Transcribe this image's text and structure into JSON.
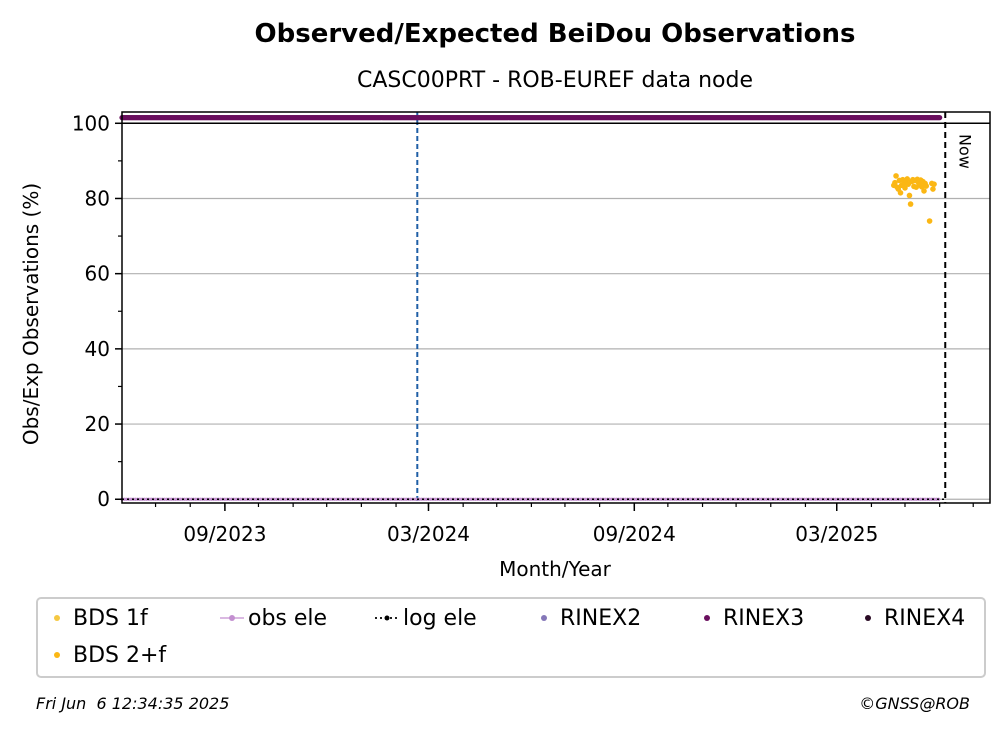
{
  "chart_data": {
    "type": "scatter",
    "title": "Observed/Expected BeiDou Observations",
    "subtitle": "CASC00PRT - ROB-EUREF data node",
    "xlabel": "Month/Year",
    "ylabel": "Obs/Exp Observations (%)",
    "x_range": [
      "2023-06-01",
      "2025-07-16"
    ],
    "ylim": [
      -1,
      103
    ],
    "xticks": [
      {
        "date": "2023-09-01",
        "label": "09/2023"
      },
      {
        "date": "2024-03-01",
        "label": "03/2024"
      },
      {
        "date": "2024-09-01",
        "label": "09/2024"
      },
      {
        "date": "2025-03-01",
        "label": "03/2025"
      }
    ],
    "yticks": [
      0,
      20,
      40,
      60,
      80,
      100
    ],
    "grid": "horizontal",
    "annotations": {
      "vertical_marker": {
        "date": "2024-02-20",
        "color": "#1f5fa6"
      },
      "now": {
        "date": "2025-06-06",
        "label": "Now"
      },
      "y100_line": 100
    },
    "series": [
      {
        "name": "BDS 1f",
        "color": "#f5c842",
        "points": []
      },
      {
        "name": "obs ele",
        "color": "#c38fd0",
        "y_constant": 0,
        "x_range": [
          "2023-06-01",
          "2025-06-01"
        ]
      },
      {
        "name": "log ele",
        "color": "#000000",
        "y_constant": 0,
        "x_range": [
          "2023-06-01",
          "2025-06-06"
        ]
      },
      {
        "name": "RINEX2",
        "color": "#8577b8",
        "points": []
      },
      {
        "name": "RINEX3",
        "color": "#6a0f5e",
        "y_constant": 101.5,
        "x_range": [
          "2023-06-01",
          "2025-06-01"
        ]
      },
      {
        "name": "RINEX4",
        "color": "#2a0a24",
        "points": []
      },
      {
        "name": "BDS 2+f",
        "color": "#fbb714",
        "points": [
          [
            "2025-04-21",
            83.5
          ],
          [
            "2025-04-22",
            84.2
          ],
          [
            "2025-04-23",
            86.0
          ],
          [
            "2025-04-24",
            83.0
          ],
          [
            "2025-04-25",
            82.5
          ],
          [
            "2025-04-26",
            84.8
          ],
          [
            "2025-04-27",
            81.5
          ],
          [
            "2025-04-28",
            83.5
          ],
          [
            "2025-04-29",
            85.0
          ],
          [
            "2025-04-30",
            84.0
          ],
          [
            "2025-05-01",
            82.8
          ],
          [
            "2025-05-02",
            84.6
          ],
          [
            "2025-05-03",
            85.2
          ],
          [
            "2025-05-04",
            83.8
          ],
          [
            "2025-05-05",
            80.8
          ],
          [
            "2025-05-06",
            78.5
          ],
          [
            "2025-05-07",
            84.5
          ],
          [
            "2025-05-08",
            85.0
          ],
          [
            "2025-05-09",
            83.2
          ],
          [
            "2025-05-10",
            84.8
          ],
          [
            "2025-05-11",
            83.0
          ],
          [
            "2025-05-12",
            85.1
          ],
          [
            "2025-05-13",
            84.3
          ],
          [
            "2025-05-14",
            83.6
          ],
          [
            "2025-05-15",
            84.9
          ],
          [
            "2025-05-16",
            83.1
          ],
          [
            "2025-05-17",
            84.5
          ],
          [
            "2025-05-18",
            82.0
          ],
          [
            "2025-05-19",
            84.0
          ],
          [
            "2025-05-20",
            83.3
          ],
          [
            "2025-05-23",
            74.0
          ],
          [
            "2025-05-25",
            84.0
          ],
          [
            "2025-05-26",
            82.5
          ],
          [
            "2025-05-27",
            83.8
          ]
        ]
      }
    ],
    "legend": {
      "placement": "bottom",
      "entries": [
        {
          "name": "BDS 1f",
          "marker": "dot",
          "color": "#f5c842"
        },
        {
          "name": "obs ele",
          "marker": "line-dot",
          "color": "#c38fd0"
        },
        {
          "name": "log ele",
          "marker": "dotted-line",
          "color": "#000000"
        },
        {
          "name": "RINEX2",
          "marker": "dot",
          "color": "#8577b8"
        },
        {
          "name": "RINEX3",
          "marker": "dot",
          "color": "#6a0f5e"
        },
        {
          "name": "RINEX4",
          "marker": "dot",
          "color": "#2a0a24"
        },
        {
          "name": "BDS 2+f",
          "marker": "dot",
          "color": "#fbb714"
        }
      ]
    }
  },
  "footer": {
    "timestamp": "Fri Jun  6 12:34:35 2025",
    "credit": "©GNSS@ROB"
  }
}
